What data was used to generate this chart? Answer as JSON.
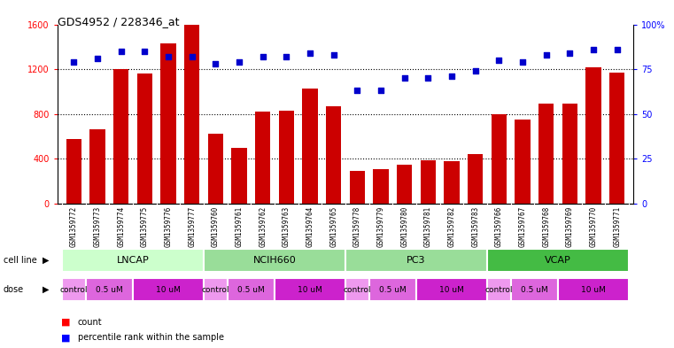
{
  "title": "GDS4952 / 228346_at",
  "samples": [
    "GSM1359772",
    "GSM1359773",
    "GSM1359774",
    "GSM1359775",
    "GSM1359776",
    "GSM1359777",
    "GSM1359760",
    "GSM1359761",
    "GSM1359762",
    "GSM1359763",
    "GSM1359764",
    "GSM1359765",
    "GSM1359778",
    "GSM1359779",
    "GSM1359780",
    "GSM1359781",
    "GSM1359782",
    "GSM1359783",
    "GSM1359766",
    "GSM1359767",
    "GSM1359768",
    "GSM1359769",
    "GSM1359770",
    "GSM1359771"
  ],
  "counts": [
    580,
    660,
    1200,
    1160,
    1430,
    1600,
    620,
    500,
    820,
    830,
    1030,
    870,
    290,
    310,
    350,
    390,
    380,
    440,
    800,
    750,
    890,
    890,
    1220,
    1170
  ],
  "percentiles": [
    79,
    81,
    85,
    85,
    82,
    82,
    78,
    79,
    82,
    82,
    84,
    83,
    63,
    63,
    70,
    70,
    71,
    74,
    80,
    79,
    83,
    84,
    86,
    86
  ],
  "cell_lines": [
    {
      "name": "LNCAP",
      "start": 0,
      "end": 6,
      "color": "#ccffcc"
    },
    {
      "name": "NCIH660",
      "start": 6,
      "end": 12,
      "color": "#99dd99"
    },
    {
      "name": "PC3",
      "start": 12,
      "end": 18,
      "color": "#99dd99"
    },
    {
      "name": "VCAP",
      "start": 18,
      "end": 24,
      "color": "#44bb44"
    }
  ],
  "dose_per_sample": [
    "control",
    "0.5 uM",
    "0.5 uM",
    "10 uM",
    "10 uM",
    "10 uM",
    "control",
    "0.5 uM",
    "0.5 uM",
    "10 uM",
    "10 uM",
    "10 uM",
    "control",
    "0.5 uM",
    "0.5 uM",
    "10 uM",
    "10 uM",
    "10 uM",
    "control",
    "0.5 uM",
    "0.5 uM",
    "10 uM",
    "10 uM",
    "10 uM"
  ],
  "dose_color_map": {
    "control": "#ee99ee",
    "0.5 uM": "#dd66dd",
    "10 uM": "#cc22cc"
  },
  "ylim_left": [
    0,
    1600
  ],
  "ylim_right": [
    0,
    100
  ],
  "yticks_left": [
    0,
    400,
    800,
    1200,
    1600
  ],
  "yticks_right": [
    0,
    25,
    50,
    75,
    100
  ],
  "bar_color": "#cc0000",
  "dot_color": "#0000cc",
  "background_color": "#ffffff",
  "grid_color": "#000000",
  "xtick_bg": "#dddddd"
}
